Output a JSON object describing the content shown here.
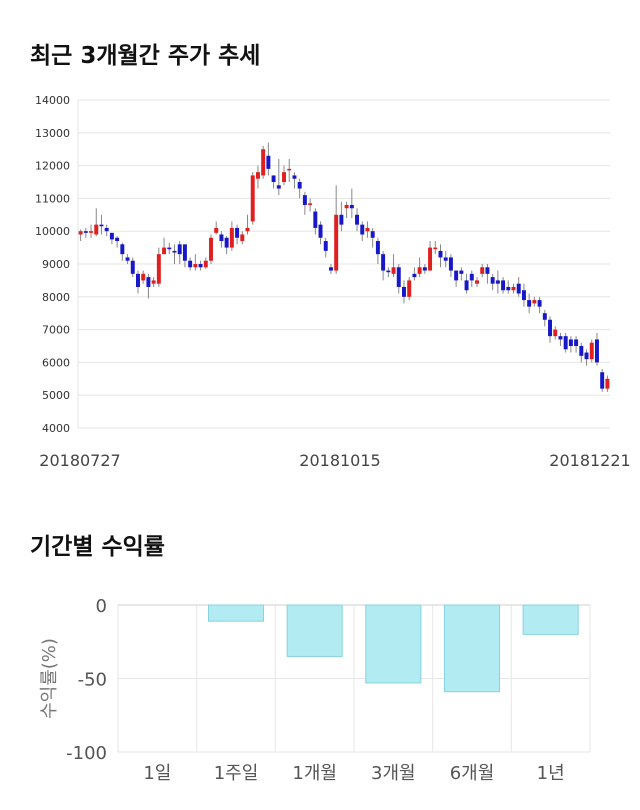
{
  "page": {
    "title1": "최근 3개월간 주가 추세",
    "title2": "기간별 수익률"
  },
  "colors": {
    "up": "#e02020",
    "down": "#1818c8",
    "wick": "#888888",
    "bar_fill": "#b2ebf2",
    "bar_stroke": "#87d3df",
    "grid": "#e6e6e6"
  },
  "chart_data": [
    {
      "type": "candlestick",
      "ylim": [
        4000,
        14000
      ],
      "yticks": [
        4000,
        5000,
        6000,
        7000,
        8000,
        9000,
        10000,
        11000,
        12000,
        13000,
        14000
      ],
      "xtick_labels": [
        "20180727",
        "20181015",
        "20181221"
      ],
      "candles": [
        [
          9900,
          10000,
          9700,
          9700,
          10050
        ],
        [
          10000,
          9950,
          9850,
          9800,
          10100
        ],
        [
          9950,
          10000,
          9900,
          9800,
          10200
        ],
        [
          9900,
          10200,
          10000,
          9850,
          10700
        ],
        [
          10200,
          10150,
          9950,
          9900,
          10500
        ],
        [
          10100,
          10000,
          9950,
          9850,
          10200
        ],
        [
          9950,
          9750,
          9700,
          9600,
          9950
        ],
        [
          9800,
          9700,
          9650,
          9500,
          9850
        ],
        [
          9600,
          9300,
          9200,
          9100,
          9650
        ],
        [
          9200,
          9100,
          9150,
          9000,
          9300
        ],
        [
          9100,
          8700,
          8800,
          8600,
          9200
        ],
        [
          8700,
          8300,
          8300,
          8100,
          8800
        ],
        [
          8500,
          8700,
          8500,
          8400,
          8800
        ],
        [
          8600,
          8300,
          8400,
          7950,
          8700
        ],
        [
          8400,
          8500,
          8450,
          8300,
          8600
        ],
        [
          8400,
          9300,
          9200,
          8300,
          9500
        ],
        [
          9300,
          9500,
          9400,
          9300,
          9800
        ],
        [
          9500,
          9450,
          9500,
          9300,
          9650
        ],
        [
          9400,
          9350,
          9300,
          9000,
          9600
        ],
        [
          9600,
          9300,
          9300,
          9000,
          9700
        ],
        [
          9600,
          9100,
          9200,
          8900,
          9500
        ],
        [
          9100,
          8900,
          9000,
          8800,
          9200
        ],
        [
          8900,
          9000,
          8950,
          8800,
          9300
        ],
        [
          9000,
          8900,
          8950,
          8800,
          9100
        ],
        [
          8900,
          9100,
          9050,
          8850,
          9200
        ],
        [
          9100,
          9800,
          9750,
          9000,
          9900
        ],
        [
          9950,
          10100,
          10050,
          9900,
          10300
        ],
        [
          9900,
          9700,
          9700,
          9500,
          10000
        ],
        [
          9800,
          9500,
          9600,
          9300,
          9850
        ],
        [
          9500,
          10100,
          10050,
          9400,
          10300
        ],
        [
          10100,
          9800,
          9800,
          9600,
          10200
        ],
        [
          9700,
          9900,
          9850,
          9600,
          10000
        ],
        [
          10000,
          10100,
          10050,
          9900,
          10500
        ],
        [
          10300,
          11700,
          11600,
          10200,
          11800
        ],
        [
          11600,
          11800,
          11750,
          11300,
          12000
        ],
        [
          11700,
          12500,
          12400,
          11600,
          12600
        ],
        [
          12300,
          11900,
          11900,
          11700,
          12700
        ],
        [
          11700,
          11500,
          11500,
          11300,
          11700
        ],
        [
          11400,
          11300,
          11400,
          11100,
          12200
        ],
        [
          11500,
          11800,
          11750,
          11400,
          12000
        ],
        [
          11900,
          11900,
          11800,
          11500,
          12200
        ],
        [
          11700,
          11600,
          11600,
          11300,
          11800
        ],
        [
          11500,
          11300,
          11300,
          11000,
          11600
        ],
        [
          11100,
          10800,
          10800,
          10500,
          11200
        ],
        [
          10800,
          10850,
          10850,
          10600,
          11000
        ],
        [
          10600,
          10100,
          10150,
          9900,
          10700
        ],
        [
          10200,
          9800,
          9900,
          9600,
          10300
        ],
        [
          9700,
          9400,
          9400,
          9200,
          9800
        ],
        [
          8900,
          8800,
          8850,
          8700,
          9000
        ],
        [
          8800,
          10500,
          10400,
          8700,
          11400
        ],
        [
          10500,
          10200,
          10300,
          10000,
          10900
        ],
        [
          10700,
          10800,
          10750,
          10400,
          10900
        ],
        [
          10800,
          10700,
          10650,
          10400,
          11300
        ],
        [
          10500,
          10200,
          10250,
          10000,
          10700
        ],
        [
          10200,
          9900,
          9900,
          9700,
          10300
        ],
        [
          10000,
          10100,
          10050,
          9800,
          10300
        ],
        [
          10000,
          9800,
          9850,
          9500,
          10100
        ],
        [
          9700,
          9300,
          9350,
          9000,
          9800
        ],
        [
          9300,
          8800,
          8800,
          8500,
          9400
        ],
        [
          8800,
          8750,
          8750,
          8600,
          8900
        ],
        [
          8700,
          8900,
          8800,
          8600,
          9300
        ],
        [
          8900,
          8300,
          8400,
          8100,
          9000
        ],
        [
          8300,
          8000,
          8050,
          7800,
          8500
        ],
        [
          8000,
          8500,
          8400,
          7900,
          8600
        ],
        [
          8700,
          8600,
          8700,
          8500,
          8900
        ],
        [
          8700,
          8900,
          8900,
          8600,
          9200
        ],
        [
          8900,
          8800,
          8850,
          8700,
          9000
        ],
        [
          8800,
          9500,
          9400,
          8800,
          9700
        ],
        [
          9500,
          9500,
          9450,
          9300,
          9700
        ],
        [
          9400,
          9200,
          9200,
          8900,
          9600
        ],
        [
          9200,
          9100,
          9150,
          8900,
          9400
        ],
        [
          9200,
          8800,
          8900,
          8600,
          9300
        ],
        [
          8800,
          8500,
          8600,
          8300,
          8800
        ],
        [
          8800,
          8700,
          8750,
          8500,
          8900
        ],
        [
          8500,
          8200,
          8300,
          8100,
          8700
        ],
        [
          8700,
          8500,
          8400,
          8300,
          8800
        ],
        [
          8400,
          8500,
          8450,
          8300,
          8600
        ],
        [
          8700,
          8900,
          8850,
          8600,
          9000
        ],
        [
          8900,
          8700,
          8700,
          8400,
          9000
        ],
        [
          8600,
          8400,
          8450,
          8200,
          8700
        ],
        [
          8500,
          8400,
          8400,
          8100,
          8800
        ],
        [
          8500,
          8200,
          8250,
          8100,
          8600
        ],
        [
          8300,
          8200,
          8250,
          8100,
          8500
        ],
        [
          8200,
          8300,
          8250,
          8100,
          8400
        ],
        [
          8400,
          8100,
          8150,
          8000,
          8600
        ],
        [
          8200,
          7900,
          7950,
          7700,
          8400
        ],
        [
          7900,
          7700,
          7800,
          7500,
          8100
        ],
        [
          7800,
          7900,
          7850,
          7700,
          8000
        ],
        [
          7900,
          7700,
          7700,
          7500,
          8000
        ],
        [
          7500,
          7300,
          7350,
          7100,
          7600
        ],
        [
          7300,
          6800,
          6850,
          6600,
          7400
        ],
        [
          6800,
          7000,
          6900,
          6700,
          7100
        ],
        [
          6800,
          6700,
          6700,
          6500,
          6900
        ],
        [
          6800,
          6400,
          6500,
          6300,
          6900
        ],
        [
          6700,
          6500,
          6500,
          6300,
          6800
        ],
        [
          6700,
          6500,
          6550,
          6300,
          6800
        ],
        [
          6500,
          6200,
          6250,
          6000,
          6600
        ],
        [
          6300,
          6100,
          6150,
          5900,
          6400
        ],
        [
          6100,
          6600,
          6550,
          6000,
          6700
        ],
        [
          6700,
          6000,
          6100,
          5900,
          6900
        ],
        [
          5700,
          5200,
          5250,
          5100,
          5800
        ],
        [
          5200,
          5500,
          5400,
          5100,
          5600
        ]
      ]
    },
    {
      "type": "bar",
      "ylabel": "수익률(%)",
      "ylim": [
        -100,
        0
      ],
      "yticks": [
        0,
        -50,
        -100
      ],
      "categories": [
        "1일",
        "1주일",
        "1개월",
        "3개월",
        "6개월",
        "1년"
      ],
      "values": [
        0,
        -11,
        -35,
        -53,
        -59,
        -20
      ]
    }
  ]
}
